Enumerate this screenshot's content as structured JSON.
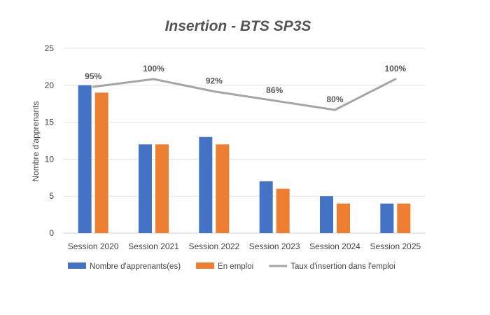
{
  "chart_data": {
    "type": "bar",
    "title": "Insertion - BTS SP3S",
    "xlabel": "",
    "ylabel": "Nombre d'apprenants",
    "ylim": [
      0,
      25
    ],
    "yticks": [
      0,
      5,
      10,
      15,
      20,
      25
    ],
    "grid": true,
    "legend_position": "bottom",
    "categories": [
      "Session 2020",
      "Session 2021",
      "Session 2022",
      "Session 2023",
      "Session 2024",
      "Session 2025"
    ],
    "series": [
      {
        "name": "Nombre d'apprenants(es)",
        "type": "bar",
        "color": "#4472c4",
        "values": [
          20,
          12,
          13,
          7,
          5,
          4
        ]
      },
      {
        "name": "En emploi",
        "type": "bar",
        "color": "#ed7d31",
        "values": [
          19,
          12,
          12,
          6,
          4,
          4
        ]
      },
      {
        "name": "Taux d'insertion dans l'emploi",
        "type": "line",
        "color": "#a5a5a5",
        "values": [
          95,
          100,
          92,
          86,
          80,
          100
        ],
        "labels": [
          "95%",
          "100%",
          "92%",
          "86%",
          "80%",
          "100%"
        ]
      }
    ]
  }
}
